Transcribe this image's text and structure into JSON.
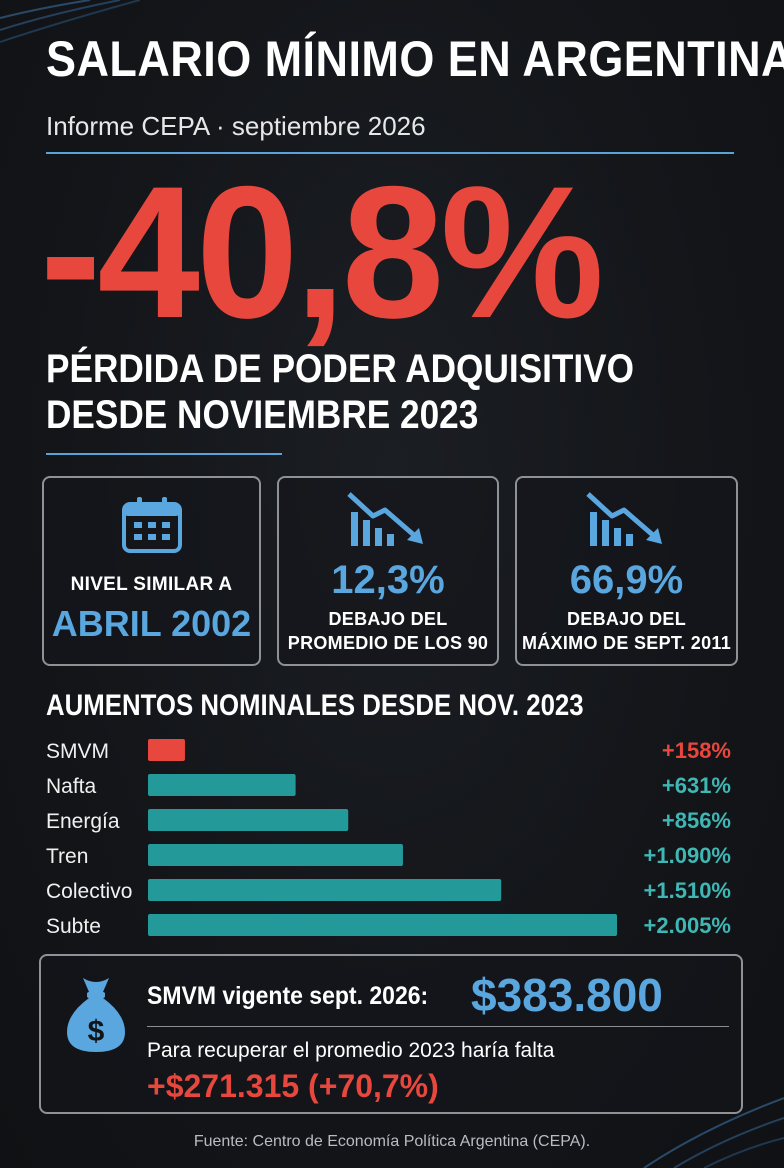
{
  "header": {
    "title": "SALARIO MÍNIMO EN ARGENTINA",
    "subtitle": "Informe CEPA · septiembre 2026"
  },
  "headline": {
    "percent": "-40,8%",
    "line1": "PÉRDIDA DE PODER ADQUISITIVO",
    "line2": "DESDE NOVIEMBRE 2023"
  },
  "stats": [
    {
      "icon": "calendar-icon",
      "label": "NIVEL SIMILAR A",
      "value": "ABRIL 2002"
    },
    {
      "icon": "trend-down-icon",
      "value": "12,3%",
      "line1": "DEBAJO DEL",
      "line2": "PROMEDIO DE LOS 90"
    },
    {
      "icon": "trend-down-icon",
      "value": "66,9%",
      "line1": "DEBAJO DEL",
      "line2": "MÁXIMO DE SEPT. 2011"
    }
  ],
  "chart_data": {
    "type": "bar",
    "orientation": "horizontal",
    "title": "AUMENTOS NOMINALES DESDE NOV. 2023",
    "categories": [
      "SMVM",
      "Nafta",
      "Energía",
      "Tren",
      "Colectivo",
      "Subte"
    ],
    "values": [
      158,
      631,
      856,
      1090,
      1510,
      2005
    ],
    "value_labels": [
      "+158%",
      "+631%",
      "+856%",
      "+1.090%",
      "+1.510%",
      "+2.005%"
    ],
    "colors": [
      "#e8473d",
      "#23999a",
      "#23999a",
      "#23999a",
      "#23999a",
      "#23999a"
    ],
    "value_label_colors": [
      "#e8473d",
      "#3fb7b4",
      "#3fb7b4",
      "#3fb7b4",
      "#3fb7b4",
      "#3fb7b4"
    ],
    "xlim": [
      0,
      2005
    ],
    "grid": false,
    "legend": "none"
  },
  "salary": {
    "icon": "money-bag-icon",
    "label": "SMVM vigente sept. 2026:",
    "value": "$383.800",
    "recover_text": "Para recuperar el promedio 2023 haría falta",
    "recover_value": "+$271.315 (+70,7%)"
  },
  "footer": {
    "source": "Fuente: Centro de Economía Política Argentina (CEPA)."
  },
  "colors": {
    "background": "#131519",
    "accent_red": "#e8473d",
    "accent_blue": "#5aa6df",
    "accent_teal": "#23999a"
  }
}
